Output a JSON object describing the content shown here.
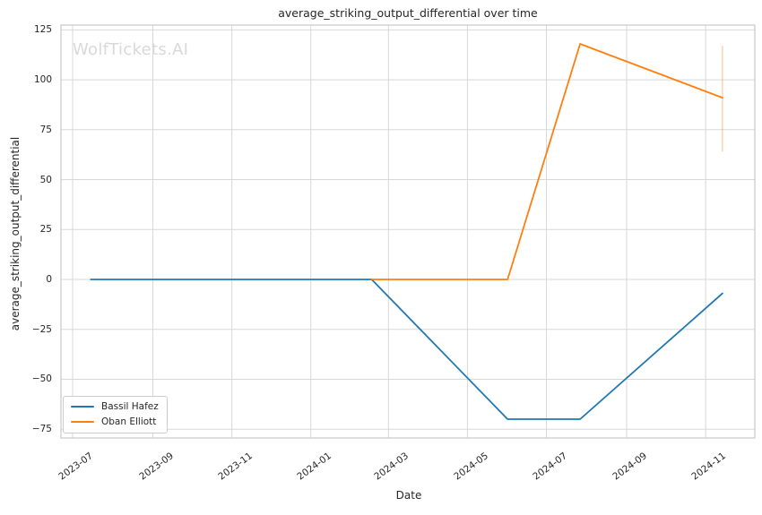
{
  "chart_data": {
    "type": "line",
    "title": "average_striking_output_differential over time",
    "xlabel": "Date",
    "ylabel": "average_striking_output_differential",
    "watermark": "WolfTickets.AI",
    "grid": true,
    "legend": {
      "position": "lower left",
      "items": [
        "Bassil Hafez",
        "Oban Elliott"
      ]
    },
    "x_ticks": [
      {
        "label": "2023-07",
        "date": "2023-07-01"
      },
      {
        "label": "2023-09",
        "date": "2023-09-01"
      },
      {
        "label": "2023-11",
        "date": "2023-11-01"
      },
      {
        "label": "2024-01",
        "date": "2024-01-01"
      },
      {
        "label": "2024-03",
        "date": "2024-03-01"
      },
      {
        "label": "2024-05",
        "date": "2024-05-01"
      },
      {
        "label": "2024-07",
        "date": "2024-07-01"
      },
      {
        "label": "2024-09",
        "date": "2024-09-01"
      },
      {
        "label": "2024-11",
        "date": "2024-11-01"
      }
    ],
    "y_ticks": [
      125,
      100,
      75,
      50,
      25,
      0,
      -25,
      -50,
      -75
    ],
    "xlim": [
      "2023-06-22",
      "2024-12-09"
    ],
    "ylim": [
      -79.4,
      127.4
    ],
    "series": [
      {
        "name": "Bassil Hafez",
        "color": "#1f77b4",
        "points": [
          [
            "2023-07-15",
            0
          ],
          [
            "2024-02-17",
            0
          ],
          [
            "2024-06-01",
            -70
          ],
          [
            "2024-07-27",
            -70
          ],
          [
            "2024-11-14",
            -7
          ]
        ]
      },
      {
        "name": "Oban Elliott",
        "color": "#ff7f0e",
        "points": [
          [
            "2024-02-17",
            0
          ],
          [
            "2024-06-01",
            0
          ],
          [
            "2024-07-27",
            118
          ],
          [
            "2024-11-14",
            91
          ]
        ],
        "error_bar": {
          "date": "2024-11-14",
          "low": 64,
          "high": 117
        }
      }
    ],
    "colors": {
      "grid": "#d8d8d8",
      "spine": "#c8c8c8",
      "text": "#262626",
      "watermark": "#d9d9d9",
      "background": "#ffffff"
    }
  }
}
